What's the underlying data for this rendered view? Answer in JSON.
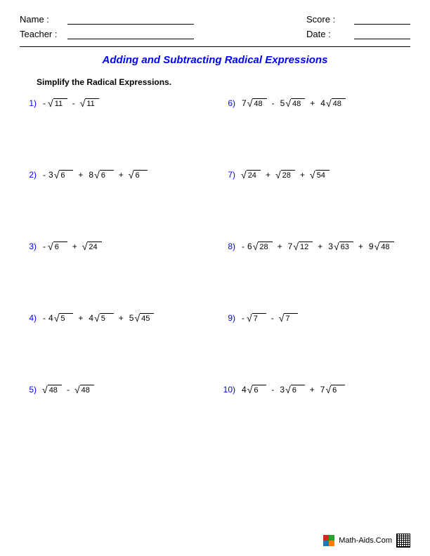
{
  "header": {
    "name_label": "Name :",
    "teacher_label": "Teacher :",
    "score_label": "Score :",
    "date_label": "Date :"
  },
  "title": {
    "text": "Adding and Subtracting Radical Expressions",
    "color": "#0000ff"
  },
  "instruction": "Simplify the Radical Expressions.",
  "number_color": "#0000ff",
  "problems_left": [
    {
      "num": "1)",
      "terms": [
        {
          "sign": "-",
          "coef": "",
          "rad": "11"
        },
        {
          "sign": "-",
          "coef": "",
          "rad": "11"
        }
      ]
    },
    {
      "num": "2)",
      "terms": [
        {
          "sign": "-",
          "coef": "3",
          "rad": "6"
        },
        {
          "sign": "+",
          "coef": "8",
          "rad": "6"
        },
        {
          "sign": "+",
          "coef": "",
          "rad": "6"
        }
      ]
    },
    {
      "num": "3)",
      "terms": [
        {
          "sign": "-",
          "coef": "",
          "rad": "6"
        },
        {
          "sign": "+",
          "coef": "",
          "rad": "24"
        }
      ]
    },
    {
      "num": "4)",
      "terms": [
        {
          "sign": "-",
          "coef": "4",
          "rad": "5"
        },
        {
          "sign": "+",
          "coef": "4",
          "rad": "5"
        },
        {
          "sign": "+",
          "coef": "5",
          "rad": "45"
        }
      ]
    },
    {
      "num": "5)",
      "terms": [
        {
          "sign": "",
          "coef": "",
          "rad": "48"
        },
        {
          "sign": "-",
          "coef": "",
          "rad": "48"
        }
      ]
    }
  ],
  "problems_right": [
    {
      "num": "6)",
      "terms": [
        {
          "sign": "",
          "coef": "7",
          "rad": "48"
        },
        {
          "sign": "-",
          "coef": "5",
          "rad": "48"
        },
        {
          "sign": "+",
          "coef": "4",
          "rad": "48"
        }
      ]
    },
    {
      "num": "7)",
      "terms": [
        {
          "sign": "",
          "coef": "",
          "rad": "24"
        },
        {
          "sign": "+",
          "coef": "",
          "rad": "28"
        },
        {
          "sign": "+",
          "coef": "",
          "rad": "54"
        }
      ]
    },
    {
      "num": "8)",
      "terms": [
        {
          "sign": "-",
          "coef": "6",
          "rad": "28"
        },
        {
          "sign": "+",
          "coef": "7",
          "rad": "12"
        },
        {
          "sign": "+",
          "coef": "3",
          "rad": "63"
        },
        {
          "sign": "+",
          "coef": "9",
          "rad": "48"
        }
      ]
    },
    {
      "num": "9)",
      "terms": [
        {
          "sign": "-",
          "coef": "",
          "rad": "7"
        },
        {
          "sign": "-",
          "coef": "",
          "rad": "7"
        }
      ]
    },
    {
      "num": "10)",
      "terms": [
        {
          "sign": "",
          "coef": "4",
          "rad": "6"
        },
        {
          "sign": "-",
          "coef": "3",
          "rad": "6"
        },
        {
          "sign": "+",
          "coef": "7",
          "rad": "6"
        }
      ]
    }
  ],
  "footer": {
    "text": "Math-Aids.Com",
    "logo_colors": [
      "#d62728",
      "#2ca02c",
      "#1f77b4",
      "#ff7f0e"
    ]
  }
}
